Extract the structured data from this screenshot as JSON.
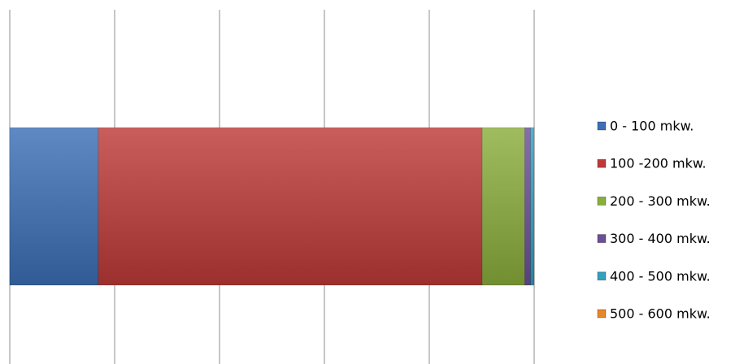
{
  "chart_data": {
    "type": "bar",
    "orientation": "horizontal",
    "stacked": true,
    "categories": [
      null
    ],
    "series": [
      {
        "name": "0 - 100 mkw.",
        "color": "#3b6fb6",
        "values": [
          16.9
        ]
      },
      {
        "name": "100 -200 mkw.",
        "color": "#be3a38",
        "values": [
          73.2
        ]
      },
      {
        "name": "200 - 300 mkw.",
        "color": "#8aae3c",
        "values": [
          8.1
        ]
      },
      {
        "name": "300 - 400 mkw.",
        "color": "#6c4f98",
        "values": [
          1.1
        ]
      },
      {
        "name": "400 - 500 mkw.",
        "color": "#33a0bf",
        "values": [
          0.6
        ]
      },
      {
        "name": "500 - 600 mkw.",
        "color": "#e8862a",
        "values": [
          0.1
        ]
      }
    ],
    "xlim": [
      0,
      100
    ],
    "xticks": [
      0,
      20,
      40,
      60,
      80,
      100
    ],
    "grid": true,
    "legend": "right"
  }
}
